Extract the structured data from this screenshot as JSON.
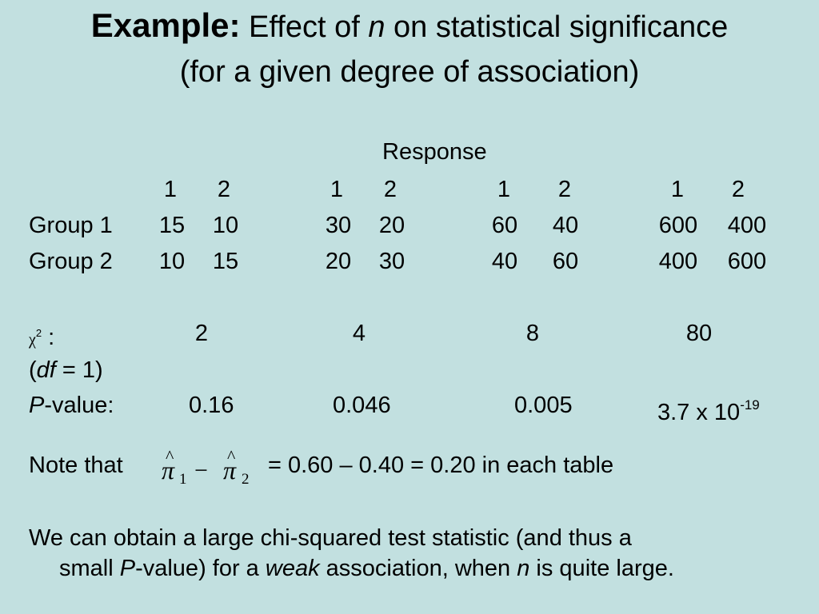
{
  "title": {
    "bold": "Example:",
    "line1_pre": " Effect of ",
    "line1_n": "n",
    "line1_post": " on statistical significance",
    "line2": "(for a given degree of association)"
  },
  "table": {
    "response_label": "Response",
    "col_headers": [
      "1",
      "2",
      "1",
      "2",
      "1",
      "2",
      "1",
      "2"
    ],
    "rows": [
      {
        "label": "Group 1",
        "values": [
          "15",
          "10",
          "30",
          "20",
          "60",
          "40",
          "600",
          "400"
        ]
      },
      {
        "label": "Group 2",
        "values": [
          "10",
          "15",
          "20",
          "30",
          "40",
          "60",
          "400",
          "600"
        ]
      }
    ],
    "chi_symbol": "χ",
    "chi_sup": "2",
    "chi_colon": " :",
    "chi_values": [
      "2",
      "4",
      "8",
      "80"
    ],
    "df_open": "(",
    "df_var": "df",
    "df_rest": " = 1)",
    "p_var": "P",
    "p_label_rest": "-value:",
    "p_values": [
      "0.16",
      "0.046",
      "0.005"
    ],
    "p_last_base": "3.7 x 10",
    "p_last_exp": "-19"
  },
  "note": {
    "prefix": "Note that",
    "pi": "π",
    "hat": "^",
    "sub1": "1",
    "minus": "−",
    "sub2": "2",
    "rest": "= 0.60 – 0.40 = 0.20 in each table"
  },
  "conclusion": {
    "line1": "We can obtain a large chi-squared test statistic (and thus a",
    "l2_a": "small ",
    "l2_P": "P",
    "l2_b": "-value) for a ",
    "l2_weak": "weak",
    "l2_c": " association, when ",
    "l2_n": "n",
    "l2_d": " is quite large."
  }
}
